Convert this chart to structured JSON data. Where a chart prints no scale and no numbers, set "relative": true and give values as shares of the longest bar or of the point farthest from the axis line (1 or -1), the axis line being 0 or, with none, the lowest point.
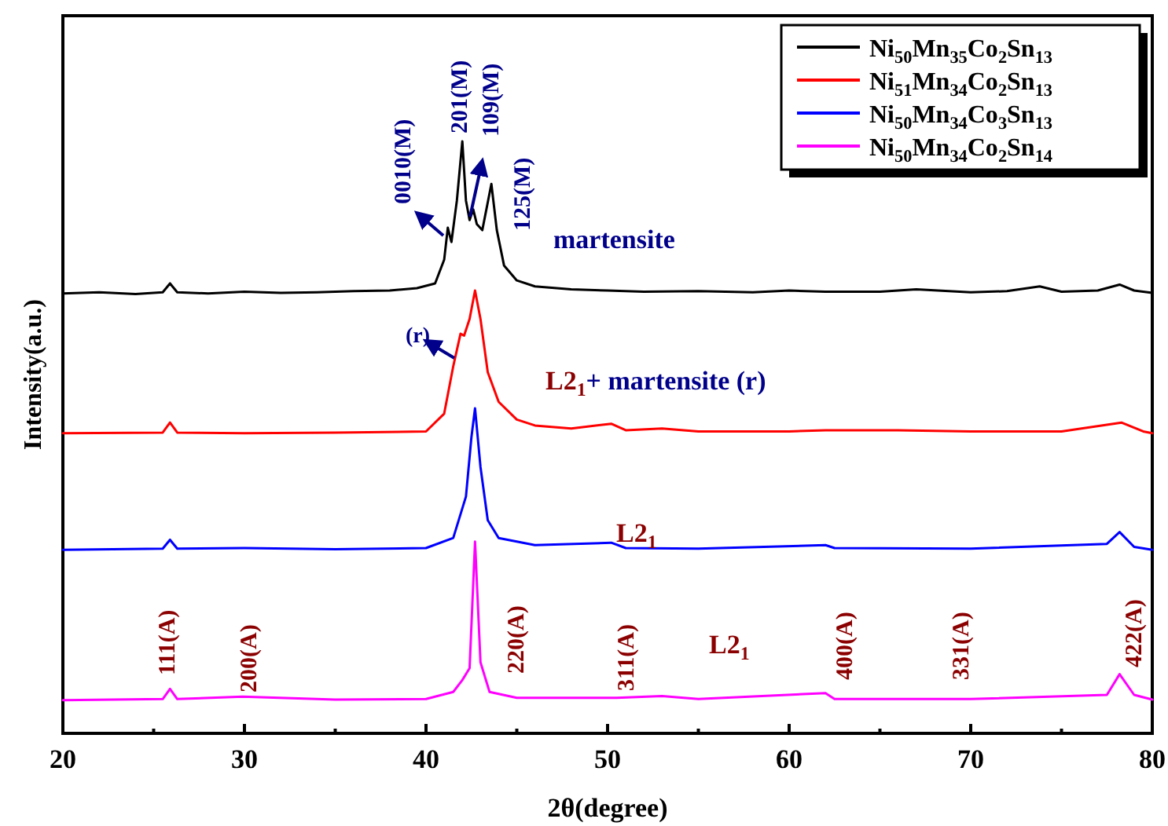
{
  "chart_data": {
    "type": "line",
    "relative": true,
    "xlabel": "2θ(degree)",
    "ylabel": "Intensity(a.u.)",
    "xlim": [
      20,
      80
    ],
    "xticks": [
      20,
      {
        "value": 25,
        "label": null
      },
      30,
      {
        "value": 35,
        "label": null
      },
      40,
      {
        "value": 45,
        "label": null
      },
      50,
      {
        "value": 55,
        "label": null
      },
      60,
      {
        "value": 65,
        "label": null
      },
      70,
      {
        "value": 75,
        "label": null
      },
      80
    ],
    "tick_labels": "x",
    "grid": false,
    "legend": "top right",
    "marker": "none",
    "line_style": "solid",
    "series": [
      {
        "name": "Ni$_{50}$Mn$_{35}$Co$_{2}$Sn$_{13}$",
        "color": "#000000",
        "x": [
          20,
          22,
          24,
          25.5,
          25.9,
          26.3,
          28,
          30,
          32,
          34,
          36,
          38,
          39.5,
          40.5,
          41.0,
          41.2,
          41.4,
          41.7,
          42.0,
          42.2,
          42.4,
          42.6,
          42.8,
          43.1,
          43.6,
          43.9,
          44.3,
          45,
          46,
          48,
          50,
          52,
          55,
          58,
          60,
          62,
          65,
          67,
          70,
          72,
          73.8,
          75,
          77,
          78.2,
          79,
          80
        ],
        "values": [
          0.743,
          0.745,
          0.742,
          0.745,
          0.76,
          0.745,
          0.743,
          0.746,
          0.744,
          0.745,
          0.747,
          0.748,
          0.752,
          0.76,
          0.8,
          0.854,
          0.83,
          0.9,
          1.0,
          0.9,
          0.867,
          0.885,
          0.86,
          0.85,
          0.928,
          0.85,
          0.79,
          0.765,
          0.755,
          0.75,
          0.748,
          0.746,
          0.747,
          0.745,
          0.748,
          0.746,
          0.746,
          0.75,
          0.745,
          0.747,
          0.755,
          0.746,
          0.748,
          0.758,
          0.748,
          0.744
        ]
      },
      {
        "name": "Ni$_{51}$Mn$_{34}$Co$_{2}$Sn$_{13}$",
        "color": "#ff0000",
        "x": [
          20,
          25.5,
          25.9,
          26.3,
          30,
          35,
          40,
          41.0,
          41.5,
          41.9,
          42.1,
          42.4,
          42.7,
          43.0,
          43.4,
          44,
          45,
          46,
          48,
          50.2,
          51,
          53,
          55,
          60,
          62,
          66,
          70,
          75,
          78.3,
          79.5,
          80
        ],
        "values": [
          0.507,
          0.508,
          0.525,
          0.508,
          0.507,
          0.508,
          0.51,
          0.54,
          0.62,
          0.675,
          0.672,
          0.7,
          0.748,
          0.7,
          0.61,
          0.56,
          0.53,
          0.52,
          0.515,
          0.523,
          0.512,
          0.515,
          0.51,
          0.51,
          0.512,
          0.512,
          0.51,
          0.51,
          0.525,
          0.51,
          0.507
        ]
      },
      {
        "name": "Ni$_{50}$Mn$_{34}$Co$_{3}$Sn$_{13}$",
        "color": "#0000ff",
        "x": [
          20,
          25.5,
          25.9,
          26.3,
          30,
          35,
          40,
          41.5,
          42.2,
          42.5,
          42.7,
          43.0,
          43.4,
          44,
          46,
          50.2,
          51,
          55,
          62,
          62.5,
          70,
          77.5,
          78.2,
          79,
          80
        ],
        "values": [
          0.31,
          0.312,
          0.327,
          0.312,
          0.313,
          0.311,
          0.313,
          0.33,
          0.4,
          0.5,
          0.549,
          0.45,
          0.36,
          0.33,
          0.318,
          0.322,
          0.313,
          0.312,
          0.318,
          0.313,
          0.312,
          0.32,
          0.34,
          0.315,
          0.31
        ]
      },
      {
        "name": "Ni$_{50}$Mn$_{34}$Co$_{2}$Sn$_{14}$",
        "color": "#ff00ff",
        "x": [
          20,
          25.5,
          25.9,
          26.3,
          29.9,
          35,
          40,
          41.5,
          42.0,
          42.4,
          42.7,
          43.0,
          43.5,
          45,
          50.5,
          53,
          55,
          62,
          62.5,
          70,
          77.5,
          78.2,
          79,
          80
        ],
        "values": [
          0.056,
          0.058,
          0.075,
          0.058,
          0.062,
          0.057,
          0.058,
          0.07,
          0.09,
          0.11,
          0.324,
          0.12,
          0.07,
          0.06,
          0.06,
          0.063,
          0.058,
          0.068,
          0.058,
          0.058,
          0.065,
          0.1,
          0.065,
          0.057
        ]
      }
    ],
    "annotations": [
      "0010(M)",
      "201(M)",
      "109(M)",
      "125(M)",
      "martensite",
      "(r)",
      "L2$_{1}$+ martensite (r)",
      "L2$_{1}$",
      "L2$_{1}$",
      "111(A)",
      "200(A)",
      "220(A)",
      "311(A)",
      "400(A)",
      "331(A)",
      "422(A)"
    ]
  }
}
